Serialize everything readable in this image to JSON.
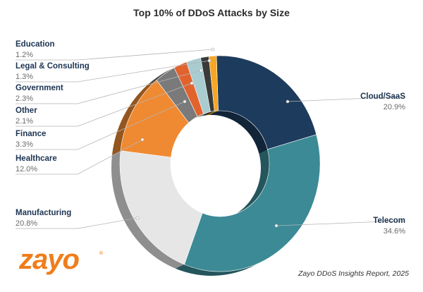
{
  "chart_data": {
    "type": "pie",
    "title": "Top 10% of DDoS Attacks by Size",
    "slices": [
      {
        "label": "Cloud/SaaS",
        "value": 20.9,
        "display": "20.9%",
        "color": "#1d3b5c"
      },
      {
        "label": "Telecom",
        "value": 34.6,
        "display": "34.6%",
        "color": "#3b8a96"
      },
      {
        "label": "Manufacturing",
        "value": 20.8,
        "display": "20.8%",
        "color": "#e6e6e6"
      },
      {
        "label": "Healthcare",
        "value": 12.0,
        "display": "12.0%",
        "color": "#ef8a32"
      },
      {
        "label": "Finance",
        "value": 3.3,
        "display": "3.3%",
        "color": "#7a7a7a"
      },
      {
        "label": "Other",
        "value": 2.1,
        "display": "2.1%",
        "color": "#e2622e"
      },
      {
        "label": "Government",
        "value": 2.3,
        "display": "2.3%",
        "color": "#a8ccd0"
      },
      {
        "label": "Legal & Consulting",
        "value": 1.3,
        "display": "1.3%",
        "color": "#3a3a3a"
      },
      {
        "label": "Education",
        "value": 1.2,
        "display": "1.2%",
        "color": "#f5a623"
      }
    ],
    "style": "3d-donut",
    "legend": "none"
  },
  "brand": {
    "logo_text": "zayo",
    "logo_mark": "®",
    "color": "#f07d1a"
  },
  "source_note": "Zayo DDoS Insights Report, 2025"
}
